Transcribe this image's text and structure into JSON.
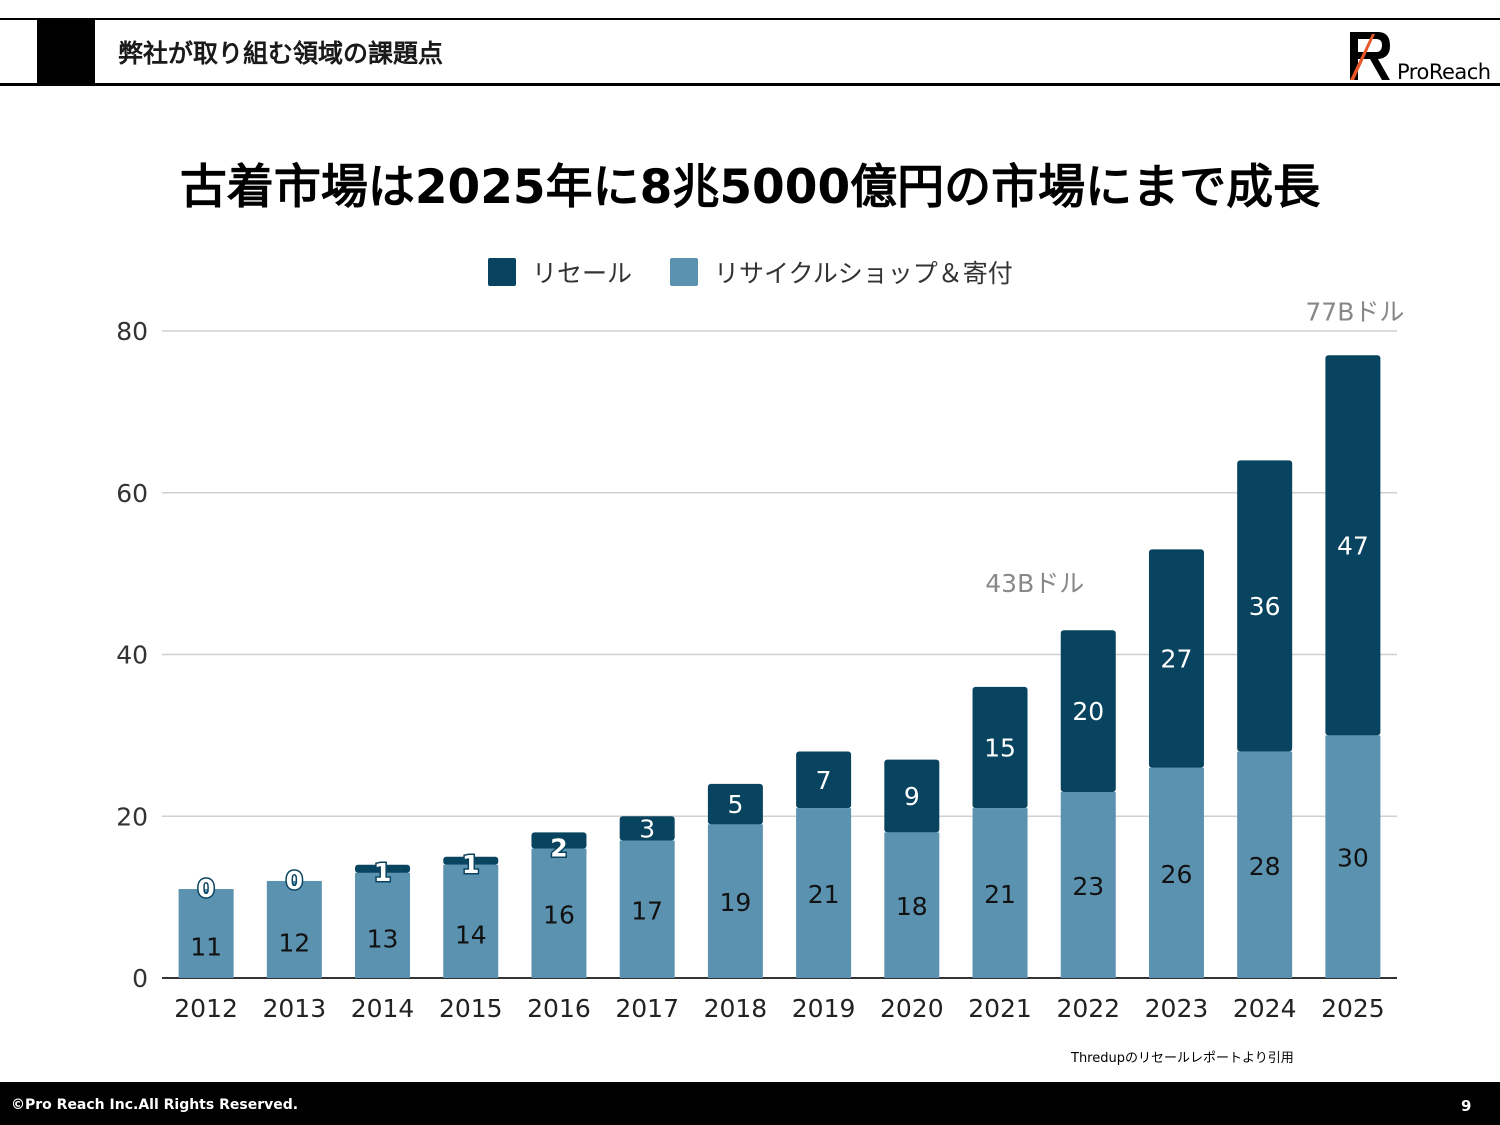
{
  "header": {
    "section_title": "弊社が取り組む領域の課題点",
    "logo_text": "ProReach"
  },
  "slide_title": "古着市場は2025年に8兆5000億円の市場にまで成長",
  "colors": {
    "resale": "#08445f",
    "thrift": "#5b92b0",
    "grid": "#d0d0d0",
    "annotation": "#888888"
  },
  "chart_data": {
    "type": "bar",
    "stacked": true,
    "categories": [
      "2012",
      "2013",
      "2014",
      "2015",
      "2016",
      "2017",
      "2018",
      "2019",
      "2020",
      "2021",
      "2022",
      "2023",
      "2024",
      "2025"
    ],
    "series": [
      {
        "name": "リサイクルショップ＆寄付",
        "values": [
          11,
          12,
          13,
          14,
          16,
          17,
          19,
          21,
          18,
          21,
          23,
          26,
          28,
          30
        ]
      },
      {
        "name": "リセール",
        "values": [
          0,
          0,
          1,
          1,
          2,
          3,
          5,
          7,
          9,
          15,
          20,
          27,
          36,
          47
        ]
      }
    ],
    "ylim": [
      0,
      80
    ],
    "yticks": [
      0,
      20,
      40,
      60,
      80
    ],
    "grid": true,
    "legend": "top",
    "legend_order": [
      "リセール",
      "リサイクルショップ＆寄付"
    ],
    "annotations": [
      {
        "category": "2022",
        "text": "43Bドル"
      },
      {
        "category": "2025",
        "text": "77Bドル"
      }
    ]
  },
  "source_note": "Thredupのリセールレポートより引用",
  "footer": {
    "copyright": "©Pro Reach  Inc.All Rights Reserved.",
    "page_number": "9"
  }
}
